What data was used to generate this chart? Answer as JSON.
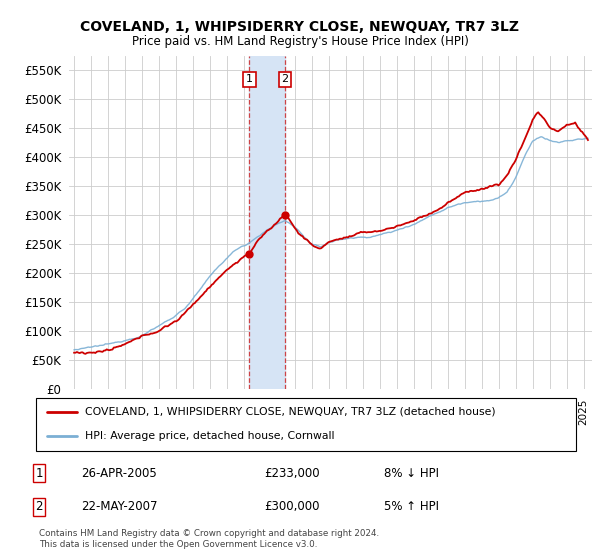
{
  "title": "COVELAND, 1, WHIPSIDERRY CLOSE, NEWQUAY, TR7 3LZ",
  "subtitle": "Price paid vs. HM Land Registry's House Price Index (HPI)",
  "legend_line1": "COVELAND, 1, WHIPSIDERRY CLOSE, NEWQUAY, TR7 3LZ (detached house)",
  "legend_line2": "HPI: Average price, detached house, Cornwall",
  "transaction1_date": "26-APR-2005",
  "transaction1_price": "£233,000",
  "transaction1_hpi": "8% ↓ HPI",
  "transaction2_date": "22-MAY-2007",
  "transaction2_price": "£300,000",
  "transaction2_hpi": "5% ↑ HPI",
  "footer": "Contains HM Land Registry data © Crown copyright and database right 2024.\nThis data is licensed under the Open Government Licence v3.0.",
  "hpi_color": "#7bafd4",
  "price_color": "#cc0000",
  "highlight_color": "#d6e4f5",
  "ylim": [
    0,
    575000
  ],
  "yticks": [
    0,
    50000,
    100000,
    150000,
    200000,
    250000,
    300000,
    350000,
    400000,
    450000,
    500000,
    550000
  ],
  "background_color": "#ffffff",
  "grid_color": "#cccccc",
  "t1": 2005.32,
  "t2": 2007.42,
  "t1_price": 233000,
  "t2_price": 300000
}
